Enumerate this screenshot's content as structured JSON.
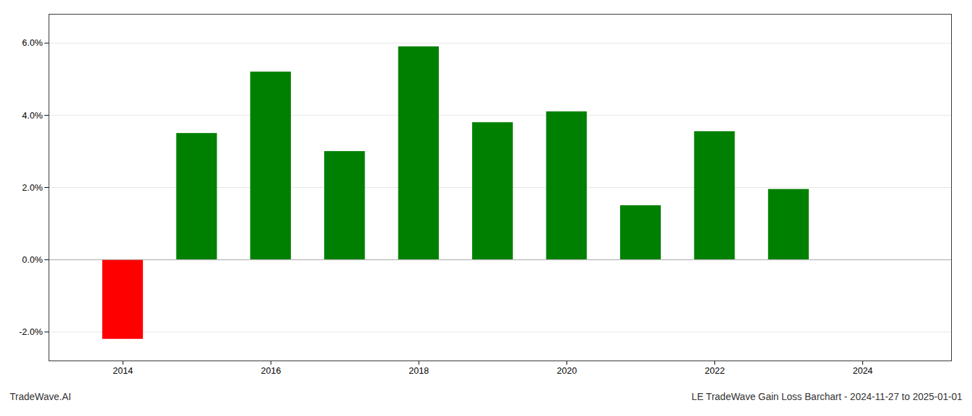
{
  "chart_data": {
    "type": "bar",
    "x": [
      2014,
      2015,
      2016,
      2017,
      2018,
      2019,
      2020,
      2021,
      2022,
      2023
    ],
    "values": [
      -0.022,
      0.035,
      0.052,
      0.03,
      0.059,
      0.038,
      0.041,
      0.015,
      0.0355,
      0.0195
    ],
    "colors": [
      "#ff0000",
      "#008000",
      "#008000",
      "#008000",
      "#008000",
      "#008000",
      "#008000",
      "#008000",
      "#008000",
      "#008000"
    ],
    "xlim": [
      2013.0,
      2025.2
    ],
    "xticks": [
      2014,
      2016,
      2018,
      2020,
      2022,
      2024
    ],
    "ylim": [
      -0.028,
      0.068
    ],
    "yticks": [
      {
        "value": -0.02,
        "label": "-2.0%"
      },
      {
        "value": 0.0,
        "label": "0.0%"
      },
      {
        "value": 0.02,
        "label": "2.0%"
      },
      {
        "value": 0.04,
        "label": "4.0%"
      },
      {
        "value": 0.06,
        "label": "6.0%"
      }
    ],
    "grid": true,
    "annotations": [
      "TradeWave.AI",
      "LE TradeWave Gain Loss Barchart - 2024-11-27 to 2025-01-01"
    ]
  }
}
